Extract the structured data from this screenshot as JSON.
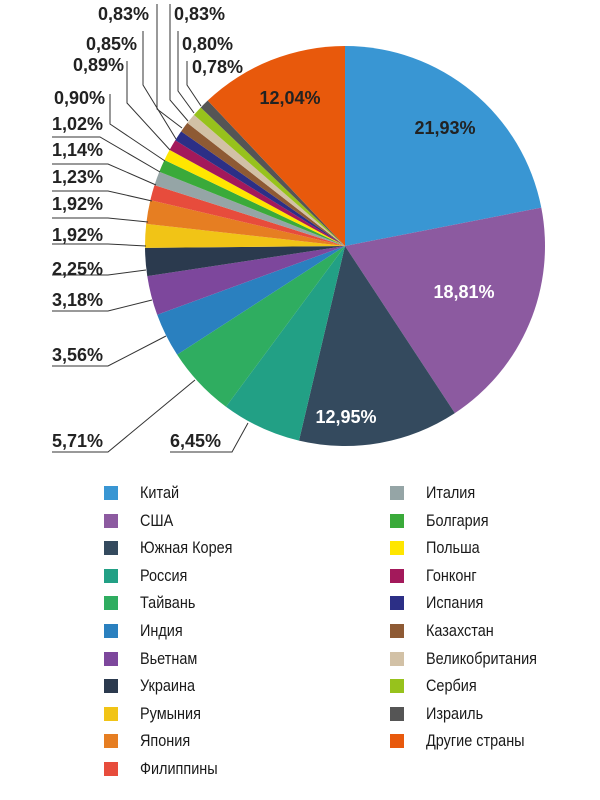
{
  "chart_data": {
    "type": "pie",
    "title": "",
    "start_angle_deg": 0,
    "direction": "clockwise",
    "categories": [
      "Китай",
      "США",
      "Южная Корея",
      "Россия",
      "Тайвань",
      "Индия",
      "Вьетнам",
      "Украина",
      "Румыния",
      "Япония",
      "Филиппины",
      "Италия",
      "Болгария",
      "Польша",
      "Гонконг",
      "Испания",
      "Казахстан",
      "Великобритания",
      "Сербия",
      "Израиль",
      "Другие страны"
    ],
    "values": [
      21.93,
      18.81,
      12.95,
      6.45,
      5.71,
      3.56,
      3.18,
      2.25,
      1.92,
      1.92,
      1.23,
      1.14,
      1.02,
      0.9,
      0.89,
      0.85,
      0.83,
      0.83,
      0.8,
      0.78,
      12.04
    ],
    "labels": [
      "21,93%",
      "18,81%",
      "12,95%",
      "6,45%",
      "5,71%",
      "3,56%",
      "3,18%",
      "2,25%",
      "1,92%",
      "1,92%",
      "1,23%",
      "1,14%",
      "1,02%",
      "0,90%",
      "0,89%",
      "0,85%",
      "0,83%",
      "0,83%",
      "0,80%",
      "0,78%",
      "12,04%"
    ],
    "colors": [
      "#3996d3",
      "#8c5aa0",
      "#344a5e",
      "#22a085",
      "#2fad60",
      "#2a80bf",
      "#7d479c",
      "#2b3a4e",
      "#f1c416",
      "#e67e22",
      "#e74c3c",
      "#95a5a6",
      "#3aaa3a",
      "#ffe600",
      "#a3195b",
      "#2c2f86",
      "#8e5a34",
      "#d2c1a6",
      "#97c21c",
      "#555555",
      "#e8590c"
    ],
    "legend_position": "bottom",
    "legend_columns": 2
  },
  "legend": {
    "left": [
      "Китай",
      "США",
      "Южная Корея",
      "Россия",
      "Тайвань",
      "Индия",
      "Вьетнам",
      "Украина",
      "Румыния",
      "Япония",
      "Филиппины"
    ],
    "right": [
      "Италия",
      "Болгария",
      "Польша",
      "Гонконг",
      "Испания",
      "Казахстан",
      "Великобритания",
      "Сербия",
      "Израиль",
      "Другие страны"
    ]
  }
}
